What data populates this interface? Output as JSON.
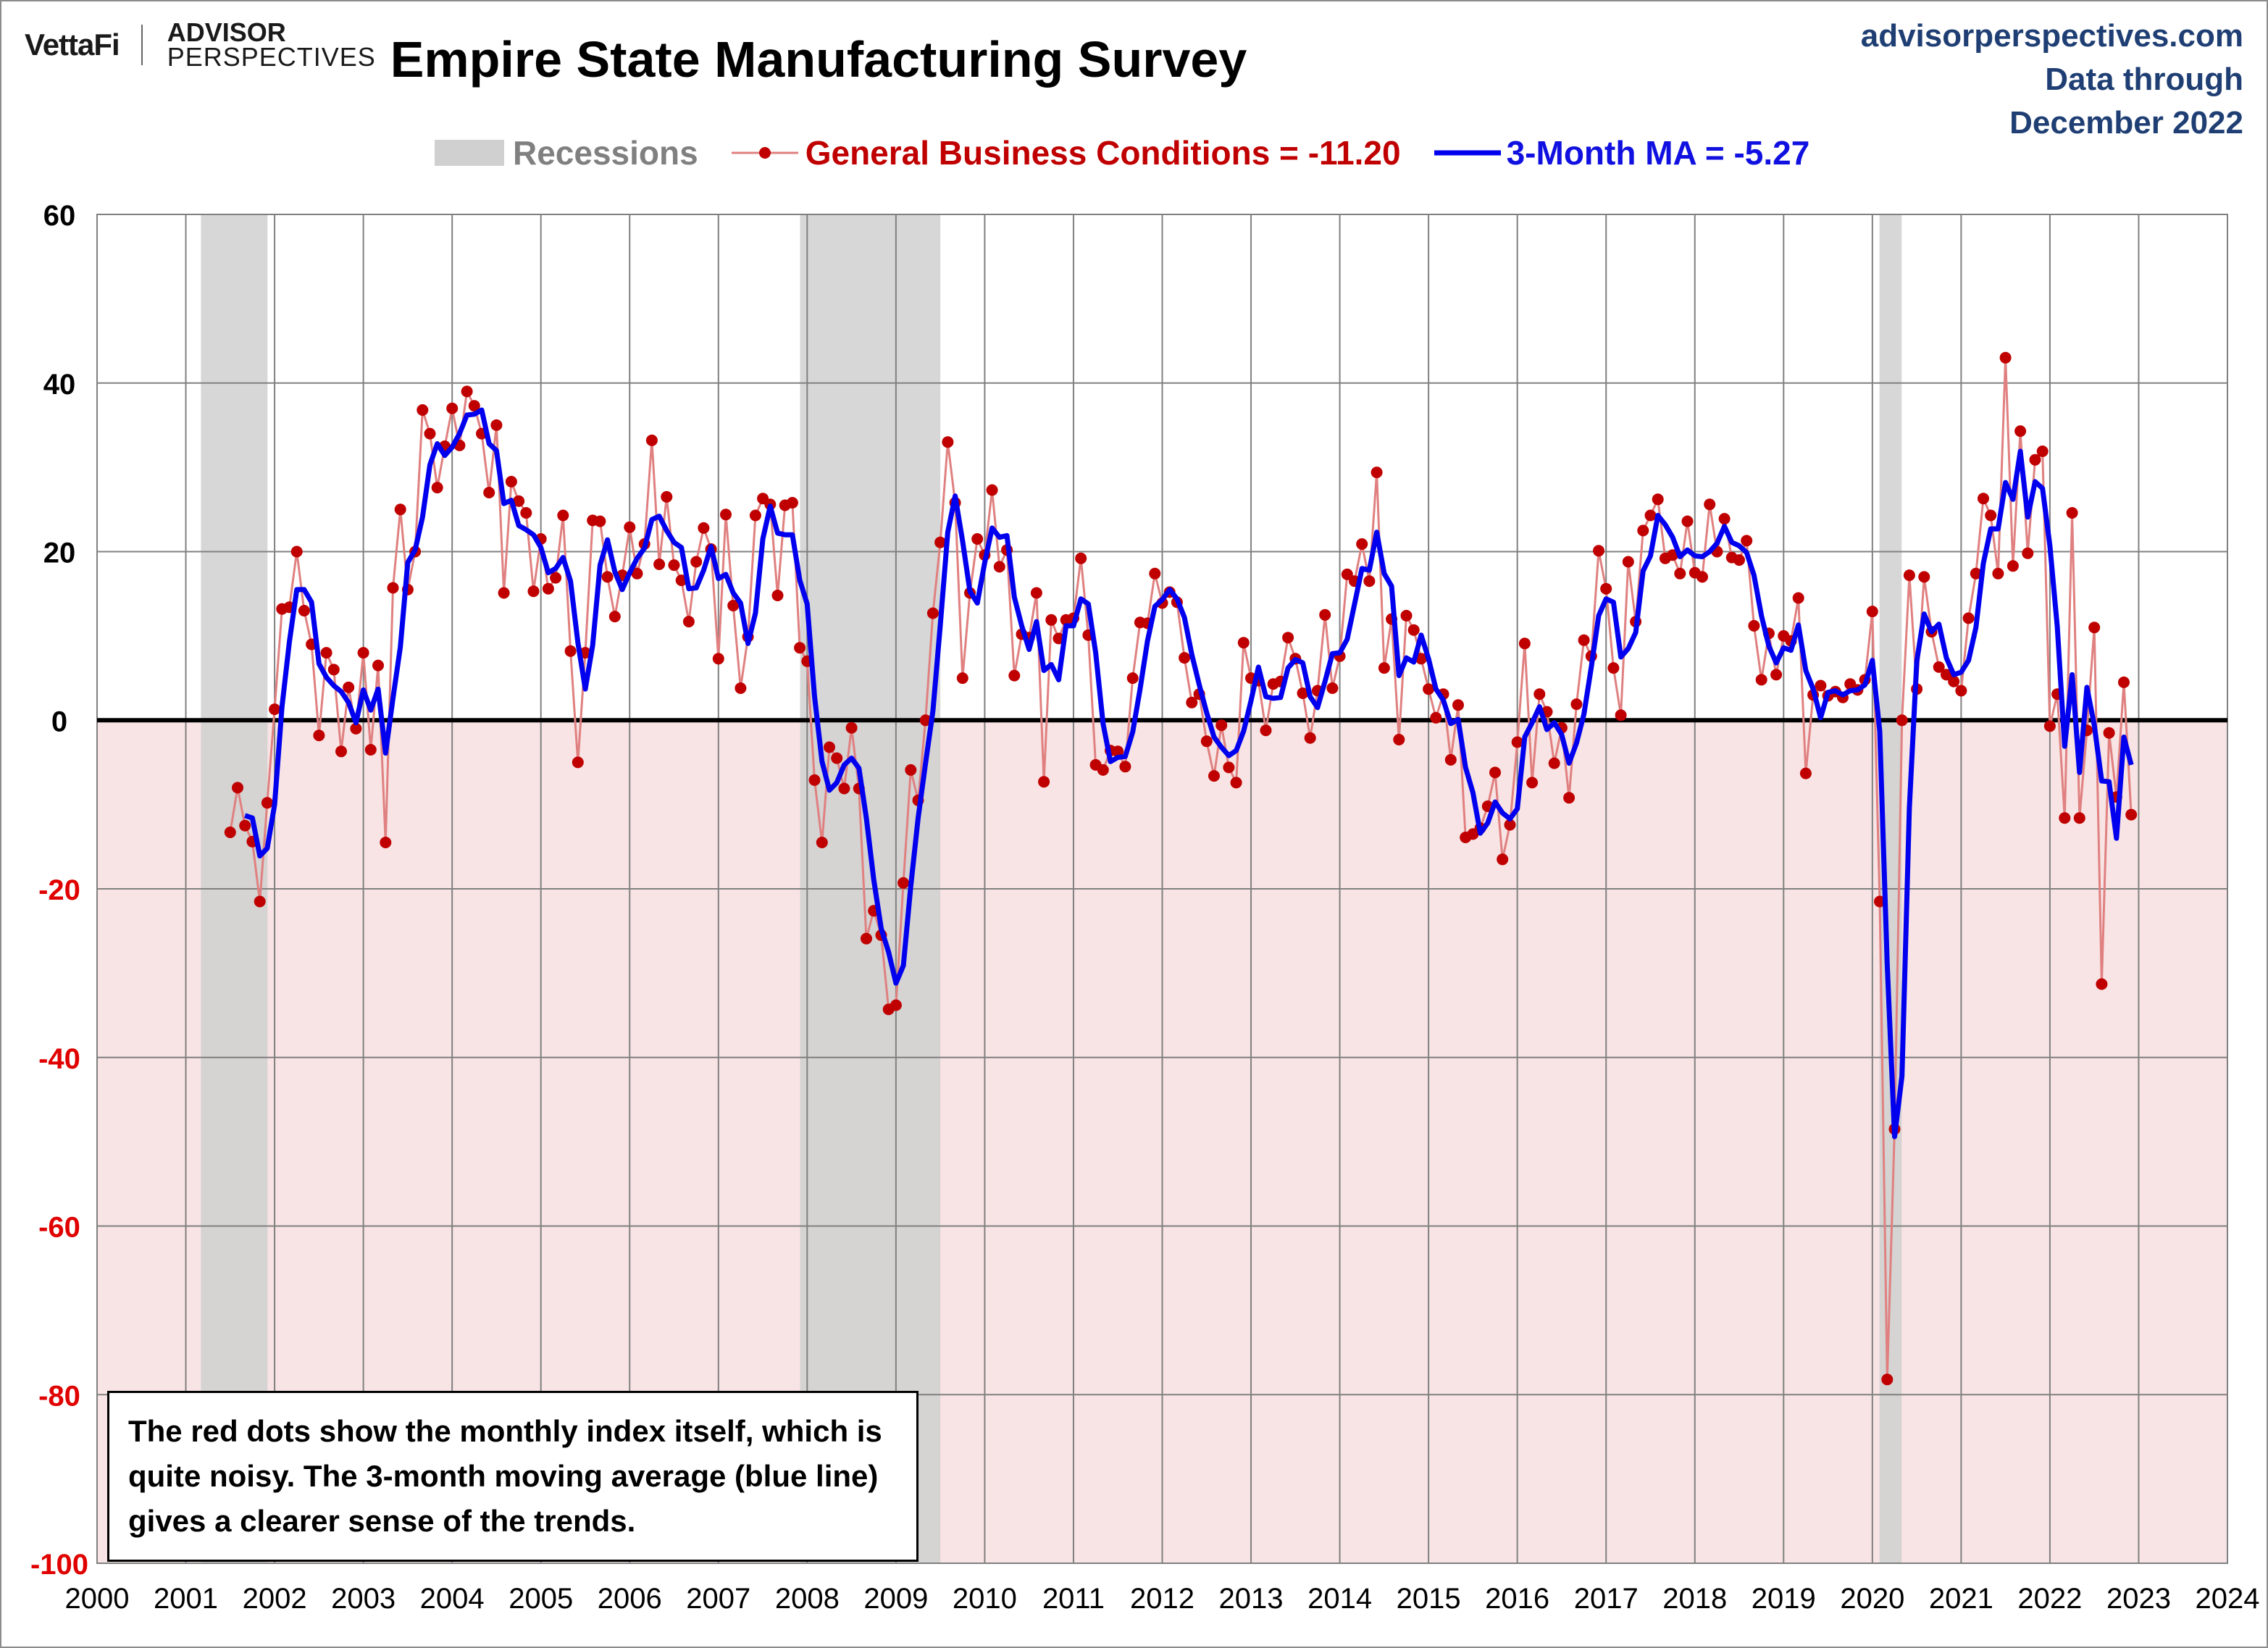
{
  "header": {
    "logo_left": "VettaFi",
    "logo_right_line1": "ADVISOR",
    "logo_right_line2": "PERSPECTIVES",
    "title": "Empire State Manufacturing Survey",
    "source_site": "advisorperspectives.com",
    "source_line2": "Data through",
    "source_line3": "December 2022"
  },
  "legend": {
    "recessions": "Recessions",
    "gbc": "General Business Conditions = -11.20",
    "ma": "3-Month MA = -5.27"
  },
  "note": {
    "text": "The red dots show the monthly  index itself, which is quite noisy. The 3-month moving average (blue line) gives a clearer sense of the trends."
  },
  "colors": {
    "gbc_line": "#e08080",
    "gbc_dot": "#c00000",
    "ma_line": "#0000ee",
    "recession": "#d0d0d0",
    "negative_fill": "#f8e4e4",
    "grid": "#808080",
    "axis_text": "#000000",
    "neg_text": "#e00000"
  },
  "chart_data": {
    "type": "line",
    "title": "Empire State Manufacturing Survey",
    "xlabel": "",
    "ylabel": "",
    "xlim": [
      2000,
      2024
    ],
    "ylim": [
      -100,
      60
    ],
    "yticks": [
      60,
      40,
      20,
      0,
      -20,
      -40,
      -60,
      -80,
      -100
    ],
    "xticks": [
      2000,
      2001,
      2002,
      2003,
      2004,
      2005,
      2006,
      2007,
      2008,
      2009,
      2010,
      2011,
      2012,
      2013,
      2014,
      2015,
      2016,
      2017,
      2018,
      2019,
      2020,
      2021,
      2022,
      2023,
      2024
    ],
    "recessions": [
      [
        2001.17,
        2001.92
      ],
      [
        2007.92,
        2009.5
      ],
      [
        2020.08,
        2020.33
      ]
    ],
    "start": [
      2001,
      7
    ],
    "series": [
      {
        "name": "General Business Conditions",
        "final_value": -11.2,
        "values": [
          -13.3,
          -8,
          -12.5,
          -14.4,
          -21.5,
          -9.8,
          1.3,
          13.2,
          13.4,
          20,
          13,
          9,
          -1.8,
          8,
          6,
          -3.7,
          3.9,
          -1,
          8,
          -3.5,
          6.5,
          -14.5,
          15.7,
          25,
          15.5,
          20,
          36.8,
          34,
          27.6,
          32.5,
          37,
          32.6,
          39,
          37.3,
          34,
          27,
          35,
          15.1,
          28.3,
          26,
          24.6,
          15.3,
          21.5,
          15.6,
          16.9,
          24.3,
          8.2,
          -5,
          8,
          23.7,
          23.6,
          17,
          12.3,
          17.2,
          22.9,
          17.4,
          20.9,
          33.2,
          18.5,
          26.5,
          18.4,
          16.6,
          11.7,
          18.8,
          22.8,
          20.3,
          7.3,
          24.4,
          13.6,
          3.8,
          9.9,
          24.3,
          26.3,
          25.6,
          14.8,
          25.5,
          25.8,
          8.6,
          7,
          -7.1,
          -14.5,
          -3.2,
          -4.5,
          -8.1,
          -0.9,
          -8.1,
          -25.9,
          -22.6,
          -25.5,
          -34.3,
          -33.8,
          -19.3,
          -5.9,
          -9.5,
          0,
          12.7,
          21.1,
          33,
          25.8,
          5,
          15.1,
          21.5,
          19.6,
          27.3,
          18.2,
          20.2,
          5.3,
          10.2,
          9.8,
          15.1,
          -7.3,
          11.9,
          9.7,
          11.9,
          12.1,
          19.2,
          10.1,
          -5.3,
          -5.9,
          -3.6,
          -3.7,
          -5.5,
          5,
          11.6,
          11.5,
          17.4,
          13.9,
          15.2,
          14,
          7.4,
          2.1,
          3.1,
          -2.5,
          -6.6,
          -0.6,
          -5.6,
          -7.4,
          9.2,
          5,
          4.7,
          -1.2,
          4.3,
          4.6,
          9.8,
          7.3,
          3.2,
          -2.1,
          3.5,
          12.5,
          3.8,
          7.6,
          17.3,
          16.5,
          20.9,
          16.5,
          29.4,
          6.2,
          12,
          -2.3,
          12.4,
          10.7,
          7.3,
          3.7,
          0.3,
          3.1,
          -4.7,
          1.8,
          -13.9,
          -13.5,
          -12.8,
          -10.2,
          -6.2,
          -16.5,
          -12.4,
          -2.6,
          9.1,
          -7.4,
          3.1,
          1,
          -5.1,
          -0.9,
          -9.2,
          1.9,
          9.5,
          7.6,
          20.1,
          15.6,
          6.2,
          0.6,
          18.8,
          11.7,
          22.5,
          24.3,
          26.2,
          19.2,
          19.6,
          17.4,
          23.6,
          17.5,
          17,
          25.6,
          20,
          23.9,
          19.3,
          19,
          21.3,
          11.2,
          4.8,
          10.3,
          5.4,
          10,
          9.4,
          14.5,
          -6.3,
          3,
          4.1,
          2.9,
          3.4,
          2.7,
          4.3,
          3.6,
          4.8,
          12.9,
          -21.5,
          -78.2,
          -48.5,
          0,
          17.2,
          3.7,
          17,
          10.5,
          6.3,
          5.4,
          4.6,
          3.5,
          12.1,
          17.4,
          26.3,
          24.3,
          17.4,
          43,
          18.3,
          34.3,
          19.8,
          30.9,
          31.9,
          -0.7,
          3.1,
          -11.6,
          24.6,
          -11.6,
          -1.2,
          11,
          -31.3,
          -1.5,
          -9.1,
          4.5,
          -11.2
        ]
      },
      {
        "name": "3-Month MA",
        "final_value": -5.27,
        "values": [
          null,
          null,
          -11.3,
          -11.6,
          -16.1,
          -15.2,
          -10,
          1.6,
          9.3,
          15.5,
          15.5,
          14,
          6.7,
          5.1,
          4.1,
          3.4,
          2.1,
          -0.3,
          3.6,
          1.2,
          3.7,
          -3.9,
          2.6,
          8.7,
          18.7,
          20.2,
          24.1,
          30.3,
          32.8,
          31.4,
          32.4,
          34,
          36.2,
          36.3,
          36.8,
          32.8,
          32,
          25.7,
          26.1,
          23.1,
          22.6,
          22,
          20.5,
          17.5,
          18,
          19.3,
          16.5,
          9.2,
          3.7,
          8.9,
          18.4,
          21.4,
          17.6,
          15.5,
          17.5,
          19.2,
          20.4,
          23.8,
          24.2,
          22.5,
          21.1,
          20.5,
          15.6,
          15.7,
          17.8,
          20.6,
          16.8,
          17.3,
          15.1,
          13.9,
          9.1,
          12.7,
          21.5,
          25.4,
          22.2,
          22,
          22,
          16.6,
          13.8,
          2.8,
          -4.9,
          -8.3,
          -7.4,
          -5.3,
          -4.5,
          -5.7,
          -11.6,
          -18.9,
          -24.7,
          -27.5,
          -31.2,
          -29.1,
          -19.7,
          -11.6,
          -5.1,
          1.1,
          11.3,
          22.3,
          26.6,
          21.3,
          15.3,
          13.9,
          18.7,
          22.8,
          21.7,
          21.9,
          14.6,
          11.2,
          8.4,
          11.7,
          5.9,
          6.6,
          4.8,
          11.2,
          11.2,
          14.4,
          13.8,
          8,
          -0.4,
          -4.9,
          -4.4,
          -4.3,
          -1.4,
          3.7,
          9.4,
          13.5,
          14.3,
          15.5,
          14.4,
          12.2,
          7.8,
          4.2,
          0.9,
          -2,
          -3.2,
          -4.2,
          -3.6,
          -1.3,
          2.3,
          6.3,
          2.8,
          2.6,
          2.7,
          6.2,
          7.2,
          6.8,
          2.8,
          1.5,
          4.6,
          7.9,
          8,
          9.6,
          13.8,
          18,
          17.8,
          22.3,
          17.4,
          15.9,
          5.3,
          7.4,
          6.9,
          10.1,
          7.3,
          3.7,
          2.4,
          -0.4,
          0.1,
          -5.6,
          -8.6,
          -13.4,
          -12.2,
          -9.7,
          -11,
          -11.7,
          -10.5,
          -2,
          -0.3,
          1.6,
          -1.1,
          -0.3,
          -1.7,
          -5.1,
          -2.7,
          0.7,
          6.3,
          12.4,
          14.4,
          14,
          7.5,
          8.5,
          10.4,
          17.7,
          19.5,
          24.3,
          23.2,
          21.7,
          19.4,
          20.2,
          19.5,
          19.4,
          20,
          21,
          23,
          21.1,
          20.7,
          19.9,
          17.2,
          12.4,
          8.8,
          6.8,
          8.6,
          8.3,
          11.3,
          5.9,
          3.7,
          0.3,
          3.3,
          3.5,
          3,
          3.5,
          3.6,
          4.2,
          7.1,
          -1.3,
          -28.9,
          -49.4,
          -42.2,
          -10.4,
          7.0,
          12.6,
          10.5,
          11.4,
          7.4,
          5.4,
          5.7,
          7.1,
          11,
          18.6,
          22.7,
          22.7,
          28.2,
          26.2,
          31.9,
          24.1,
          28.3,
          27.5,
          20.7,
          11.1,
          -3.1,
          5.4,
          -6.2,
          3.9,
          -0.6,
          -7.2,
          -7.3,
          -14,
          -2,
          -5.3
        ]
      }
    ]
  }
}
